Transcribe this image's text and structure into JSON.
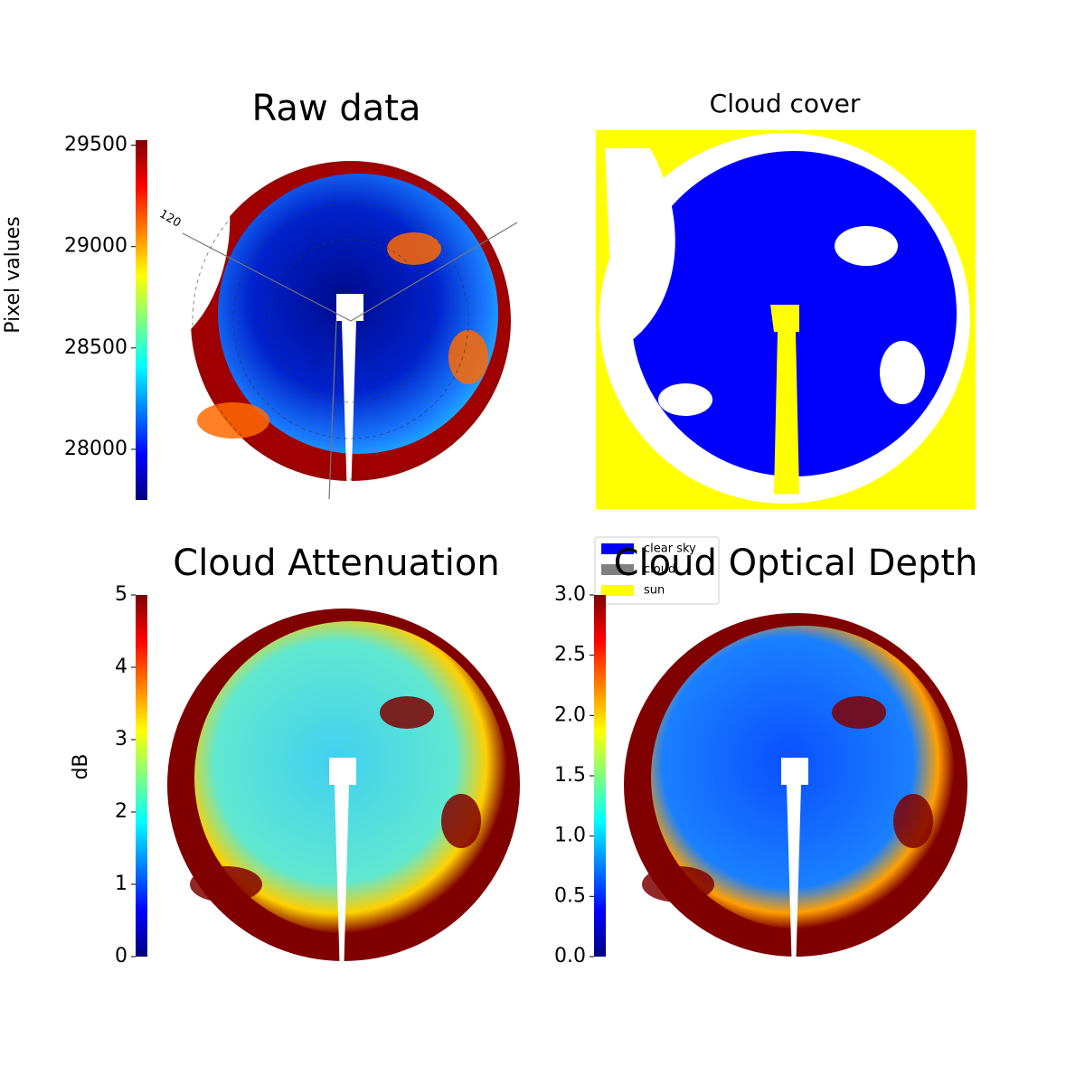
{
  "chart_data": [
    {
      "type": "image",
      "title": "Raw data",
      "colorbar_label": "Pixel values",
      "ylim": [
        27750,
        29525
      ],
      "yticks": [
        28000,
        28500,
        29000,
        29500
      ],
      "annotations": [
        "120"
      ]
    },
    {
      "type": "mask",
      "title": "Cloud cover",
      "series": [
        {
          "name": "clear sky",
          "color": "#0000ff"
        },
        {
          "name": "cloud",
          "color": "#808080"
        },
        {
          "name": "sun",
          "color": "#ffff00"
        }
      ]
    },
    {
      "type": "image",
      "title": "Cloud Attenuation",
      "colorbar_label": "dB",
      "ylim": [
        0,
        5
      ],
      "yticks": [
        0,
        1,
        2,
        3,
        4,
        5
      ]
    },
    {
      "type": "image",
      "title": "Cloud Optical Depth",
      "ylim": [
        0,
        3
      ],
      "yticks": [
        {
          "value": 0,
          "label": "0.0"
        },
        0.5,
        {
          "value": 1,
          "label": "1.0"
        },
        1.5,
        {
          "value": 2,
          "label": "2.0"
        },
        2.5,
        {
          "value": 3,
          "label": "3.0"
        }
      ]
    }
  ]
}
